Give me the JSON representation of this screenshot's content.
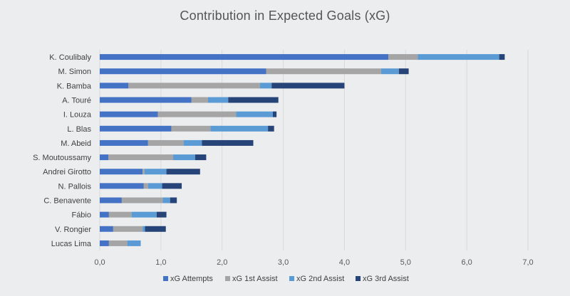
{
  "chart_data": {
    "type": "bar",
    "orientation": "horizontal",
    "stacked": true,
    "title": "Contribution in Expected Goals (xG)",
    "categories": [
      "K. Coulibaly",
      "M. Simon",
      "K. Bamba",
      "A. Touré",
      "I. Louza",
      "L. Blas",
      "M. Abeid",
      "S. Moutoussamy",
      "Andrei Girotto",
      "N. Pallois",
      "C. Benavente",
      "Fábio",
      "V. Rongier",
      "Lucas Lima"
    ],
    "series": [
      {
        "name": "xG Attempts",
        "color": "#4472c4",
        "values": [
          4.72,
          2.72,
          0.47,
          1.5,
          0.95,
          1.17,
          0.79,
          0.14,
          0.7,
          0.72,
          0.36,
          0.15,
          0.22,
          0.15
        ]
      },
      {
        "name": "xG 1st Assist",
        "color": "#a5a5a5",
        "values": [
          0.48,
          1.88,
          2.15,
          0.27,
          1.28,
          0.64,
          0.58,
          1.06,
          0.03,
          0.07,
          0.67,
          0.37,
          0.48,
          0.3
        ]
      },
      {
        "name": "xG 2nd Assist",
        "color": "#5b9bd5",
        "values": [
          1.33,
          0.29,
          0.19,
          0.33,
          0.6,
          0.94,
          0.3,
          0.36,
          0.36,
          0.23,
          0.12,
          0.41,
          0.04,
          0.22
        ]
      },
      {
        "name": "xG 3rd Assist",
        "color": "#264478",
        "values": [
          0.09,
          0.16,
          1.19,
          0.82,
          0.06,
          0.1,
          0.84,
          0.18,
          0.55,
          0.32,
          0.11,
          0.16,
          0.34,
          0.0
        ]
      }
    ],
    "xlim": [
      0,
      7
    ],
    "xticks": [
      "0,0",
      "1,0",
      "2,0",
      "3,0",
      "4,0",
      "5,0",
      "6,0",
      "7,0"
    ],
    "grid": "vertical",
    "legend": "bottom"
  }
}
